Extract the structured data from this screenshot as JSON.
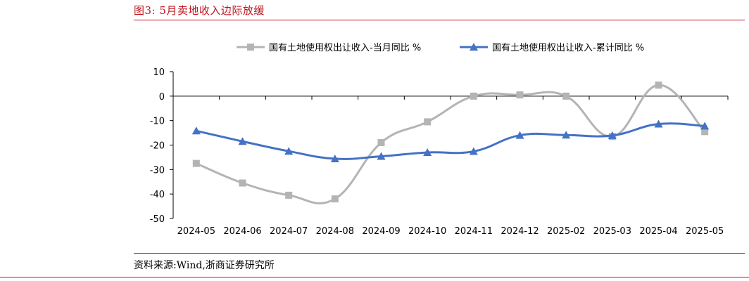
{
  "figure": {
    "title": "图3:  5月卖地收入边际放缓",
    "source": "资料来源:Wind,浙商证券研究所"
  },
  "chart_data": {
    "type": "line",
    "x": [
      "2024-05",
      "2024-06",
      "2024-07",
      "2024-08",
      "2024-09",
      "2024-10",
      "2024-11",
      "2024-12",
      "2025-02",
      "2025-03",
      "2025-04",
      "2025-05"
    ],
    "ylim": [
      -50,
      10
    ],
    "yticks": [
      10,
      0,
      -10,
      -20,
      -30,
      -40,
      -50
    ],
    "grid": false,
    "legend_position": "top",
    "smooth": true,
    "series": [
      {
        "name": "国有土地使用权出让收入-当月同比 %",
        "color": "#b4b4b4",
        "marker": "square",
        "values": [
          -27.5,
          -35.5,
          -40.5,
          -42.0,
          -19.0,
          -10.5,
          0.0,
          0.5,
          0.0,
          -16.5,
          4.5,
          -14.5
        ]
      },
      {
        "name": "国有土地使用权出让收入-累计同比 %",
        "color": "#4472c4",
        "marker": "triangle",
        "values": [
          -14.2,
          -18.5,
          -22.5,
          -25.6,
          -24.6,
          -23.0,
          -22.6,
          -16.0,
          -15.9,
          -16.1,
          -11.4,
          -12.2
        ]
      }
    ]
  }
}
